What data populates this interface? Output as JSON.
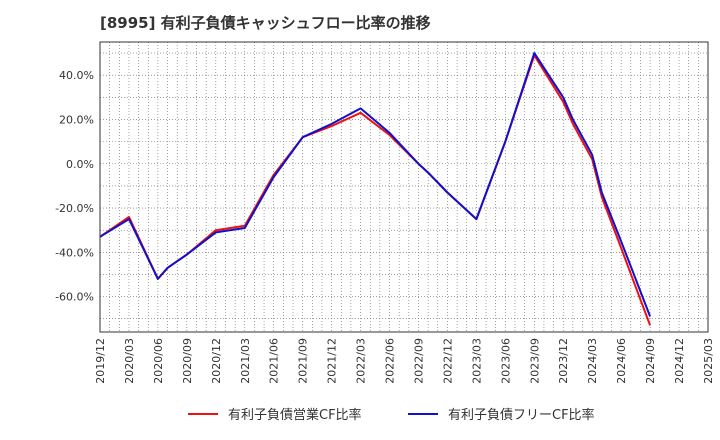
{
  "chart_data": {
    "type": "line",
    "title": "[8995]  有利子負債キャッシュフロー比率の推移",
    "x_ticks": [
      "2019/12",
      "2020/03",
      "2020/06",
      "2020/09",
      "2020/12",
      "2021/03",
      "2021/06",
      "2021/09",
      "2021/12",
      "2022/03",
      "2022/06",
      "2022/09",
      "2022/12",
      "2023/03",
      "2023/06",
      "2023/09",
      "2023/12",
      "2024/03",
      "2024/06",
      "2024/09",
      "2024/12",
      "2025/03"
    ],
    "y_ticks": [
      "40.0%",
      "20.0%",
      "0.0%",
      "-20.0%",
      "-40.0%",
      "-60.0%"
    ],
    "y_tick_values": [
      40,
      20,
      0,
      -20,
      -40,
      -60
    ],
    "ylim": [
      -76,
      55
    ],
    "grid": true,
    "legend_position": "bottom",
    "x": [
      "2019/12",
      "2020/03",
      "2020/06",
      "2020/07",
      "2020/08",
      "2020/09",
      "2020/12",
      "2021/03",
      "2021/06",
      "2021/09",
      "2021/12",
      "2022/03",
      "2022/06",
      "2022/09",
      "2022/10",
      "2022/12",
      "2023/03",
      "2023/06",
      "2023/09",
      "2023/12",
      "2024/01",
      "2024/03",
      "2024/04",
      "2024/06",
      "2024/09"
    ],
    "series": [
      {
        "name": "有利子負債営業CF比率",
        "color": "#ee1111",
        "values": [
          -33,
          -24,
          -52,
          -47,
          -44,
          -41,
          -30,
          -28,
          -5,
          12,
          17,
          23,
          13,
          0,
          -4,
          -13,
          -25,
          10,
          49,
          28,
          18,
          2,
          -15,
          -38,
          -73
        ]
      },
      {
        "name": "有利子負債フリーCF比率",
        "color": "#1111cc",
        "values": [
          -33,
          -25,
          -52,
          -47,
          -44,
          -41,
          -31,
          -29,
          -6,
          12,
          18,
          25,
          14,
          0,
          -4,
          -13,
          -25,
          10,
          50,
          30,
          20,
          4,
          -13,
          -35,
          -69
        ]
      }
    ]
  }
}
